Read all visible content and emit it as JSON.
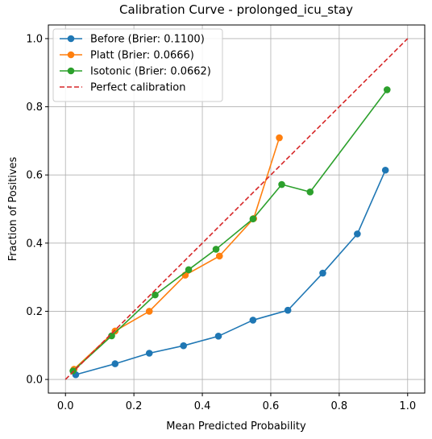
{
  "chart_data": {
    "type": "line",
    "title": "Calibration Curve - prolonged_icu_stay",
    "xlabel": "Mean Predicted Probability",
    "ylabel": "Fraction of Positives",
    "xlim": [
      -0.05,
      1.05
    ],
    "ylim": [
      -0.04,
      1.04
    ],
    "x_ticks": [
      "0.0",
      "0.2",
      "0.4",
      "0.6",
      "0.8",
      "1.0"
    ],
    "y_ticks": [
      "0.0",
      "0.2",
      "0.4",
      "0.6",
      "0.8",
      "1.0"
    ],
    "grid": true,
    "legend_position": "top-left",
    "series": [
      {
        "name": "Before (Brier: 0.1100)",
        "color": "#1f77b4",
        "style": "solid",
        "marker": "circle",
        "x": [
          0.03,
          0.145,
          0.245,
          0.345,
          0.447,
          0.548,
          0.65,
          0.752,
          0.853,
          0.935
        ],
        "y": [
          0.014,
          0.046,
          0.077,
          0.099,
          0.127,
          0.174,
          0.203,
          0.312,
          0.427,
          0.614
        ]
      },
      {
        "name": "Platt (Brier: 0.0666)",
        "color": "#ff7f0e",
        "style": "solid",
        "marker": "circle",
        "x": [
          0.025,
          0.145,
          0.245,
          0.35,
          0.45,
          0.55,
          0.625
        ],
        "y": [
          0.03,
          0.142,
          0.2,
          0.306,
          0.362,
          0.472,
          0.709
        ]
      },
      {
        "name": "Isotonic (Brier: 0.0662)",
        "color": "#2ca02c",
        "style": "solid",
        "marker": "circle",
        "x": [
          0.022,
          0.135,
          0.262,
          0.36,
          0.44,
          0.548,
          0.632,
          0.715,
          0.94
        ],
        "y": [
          0.025,
          0.128,
          0.248,
          0.322,
          0.382,
          0.471,
          0.572,
          0.55,
          0.85
        ]
      },
      {
        "name": "Perfect calibration",
        "color": "#d62728",
        "style": "dashed",
        "marker": "none",
        "x": [
          0,
          1
        ],
        "y": [
          0,
          1
        ]
      }
    ]
  }
}
